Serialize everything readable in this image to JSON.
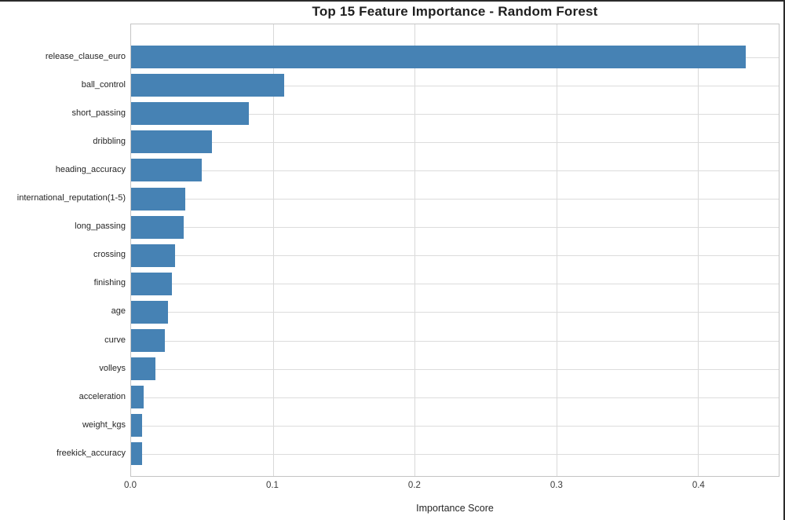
{
  "frame": {
    "top_border_color": "#2b2b2b",
    "right_border_color": "#2b2b2b"
  },
  "chart_data": {
    "type": "bar",
    "orientation": "horizontal",
    "title": "Top 15 Feature Importance - Random Forest",
    "xlabel": "Importance Score",
    "ylabel": "",
    "categories": [
      "release_clause_euro",
      "ball_control",
      "short_passing",
      "dribbling",
      "heading_accuracy",
      "international_reputation(1-5)",
      "long_passing",
      "crossing",
      "finishing",
      "age",
      "curve",
      "volleys",
      "acceleration",
      "weight_kgs",
      "freekick_accuracy"
    ],
    "values": [
      0.434,
      0.108,
      0.083,
      0.057,
      0.05,
      0.038,
      0.037,
      0.031,
      0.029,
      0.026,
      0.024,
      0.017,
      0.009,
      0.008,
      0.008
    ],
    "xlim": [
      0,
      0.457
    ],
    "x_ticks": [
      0.0,
      0.1,
      0.2,
      0.3,
      0.4
    ],
    "x_tick_labels": [
      "0.0",
      "0.1",
      "0.2",
      "0.3",
      "0.4"
    ],
    "grid": true,
    "legend": false,
    "bar_color": "#4682b4",
    "grid_color": "#d9d9d9",
    "spine_color": "#c4c4c4"
  }
}
